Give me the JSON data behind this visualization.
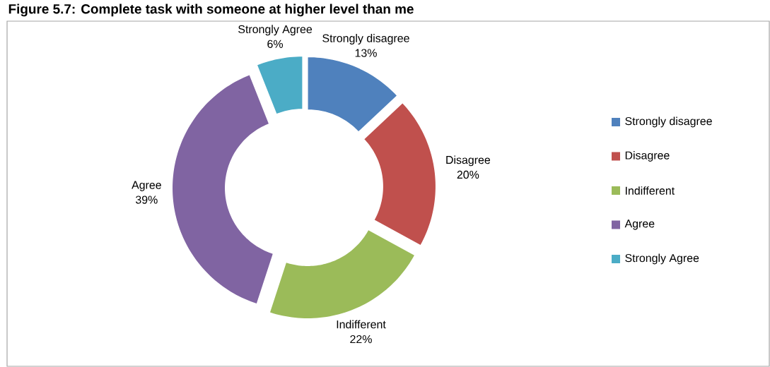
{
  "chart_data": {
    "type": "donut",
    "title": "Figure 5.7: Complete task with someone at higher level than me",
    "categories": [
      "Strongly disagree",
      "Disagree",
      "Indifferent",
      "Agree",
      "Strongly Agree"
    ],
    "values": [
      13,
      20,
      22,
      39,
      6
    ],
    "colors": [
      "#4f81bd",
      "#c0504d",
      "#9bbb59",
      "#8064a2",
      "#4bacc6"
    ],
    "value_labels": [
      "13%",
      "20%",
      "22%",
      "39%",
      "6%"
    ],
    "legend": "right"
  }
}
